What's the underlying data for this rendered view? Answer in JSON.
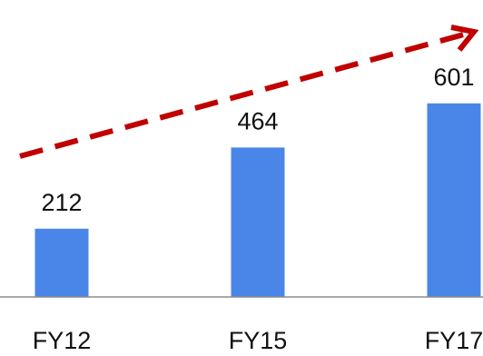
{
  "chart_data": {
    "type": "bar",
    "categories": [
      "FY12",
      "FY15",
      "FY17"
    ],
    "values": [
      212,
      464,
      601
    ],
    "data_labels": [
      "212",
      "464",
      "601"
    ],
    "title": "",
    "xlabel": "",
    "ylabel": "",
    "ylim": [
      0,
      700
    ],
    "grid": false,
    "legend": "none",
    "colors": {
      "bar": "#4A86E8",
      "trend_arrow": "#C00000",
      "axis": "#8C8C8C"
    },
    "annotation": {
      "type": "trend-arrow",
      "style": "dashed",
      "direction": "up-right"
    }
  }
}
